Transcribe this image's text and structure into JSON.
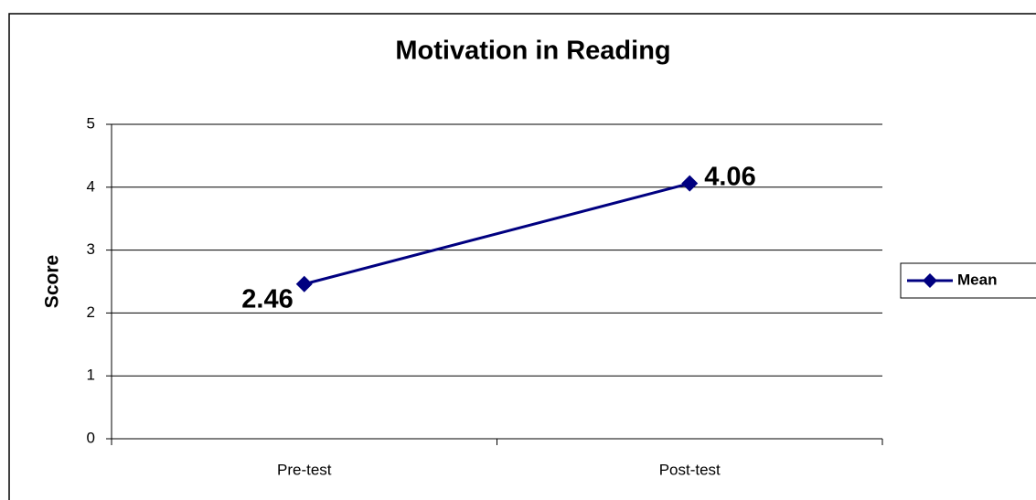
{
  "chart_data": {
    "type": "line",
    "title": "Motivation in Reading",
    "y_label": "Score",
    "categories": [
      "Pre-test",
      "Post-test"
    ],
    "series": [
      {
        "name": "Mean",
        "color": "#000080",
        "values": [
          2.46,
          4.06
        ]
      }
    ],
    "ylim": [
      0,
      5
    ],
    "yticks": [
      0,
      1,
      2,
      3,
      4,
      5
    ],
    "grid": true,
    "legend": "right",
    "data_labels": true
  }
}
